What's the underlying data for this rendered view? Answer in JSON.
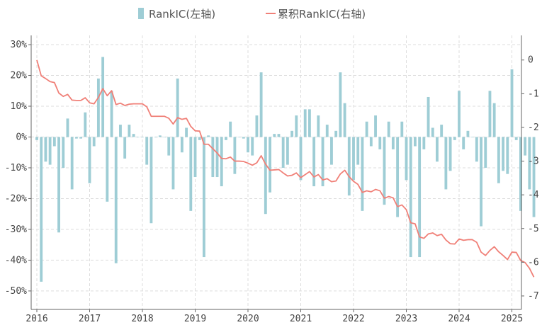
{
  "chart_data": {
    "type": "bar+line",
    "title": "",
    "xlabel": "",
    "ylabel": "",
    "legend": {
      "placement": "top-center",
      "bar_label": "RankIC(左轴)",
      "line_label": "累积RankIC(右轴)"
    },
    "grid": true,
    "colors": {
      "bar": "#9ecdd5",
      "line": "#f08078",
      "axis": "#666666",
      "grid": "#dddddd"
    },
    "x_ticks": [
      "2016",
      "2017",
      "2018",
      "2019",
      "2020",
      "2021",
      "2022",
      "2023",
      "2024",
      "2025"
    ],
    "y_left": {
      "lim": [
        -0.56,
        0.33
      ],
      "ticks": [
        0.3,
        0.2,
        0.1,
        0,
        -0.1,
        -0.2,
        -0.3,
        -0.4,
        -0.5
      ],
      "tick_labels": [
        "30%",
        "20%",
        "10%",
        "0%",
        "-10%",
        "-20%",
        "-30%",
        "-40%",
        "-50%"
      ]
    },
    "y_right": {
      "lim": [
        -7.4,
        0.73
      ],
      "ticks": [
        0,
        -1,
        -2,
        -3,
        -4,
        -5,
        -6,
        -7
      ],
      "tick_labels": [
        "0",
        "-1",
        "-2",
        "-3",
        "-4",
        "-5",
        "-6",
        "-7"
      ]
    },
    "start": "2016-01",
    "monthly_rank_ic": [
      -0.01,
      -0.47,
      -0.08,
      -0.09,
      -0.03,
      -0.31,
      -0.1,
      0.06,
      -0.17,
      -0.005,
      -0.005,
      0.08,
      -0.15,
      -0.03,
      0.19,
      0.26,
      -0.21,
      0.15,
      -0.41,
      0.04,
      -0.07,
      0.04,
      0.01,
      0.0,
      0.0,
      -0.09,
      -0.28,
      0.0,
      0.005,
      0.0,
      -0.06,
      -0.17,
      0.19,
      -0.05,
      0.03,
      -0.24,
      -0.13,
      -0.01,
      -0.39,
      0.005,
      -0.13,
      -0.13,
      -0.16,
      -0.01,
      0.05,
      -0.12,
      0.0,
      -0.005,
      -0.05,
      -0.06,
      0.07,
      0.21,
      -0.25,
      -0.18,
      0.01,
      0.01,
      -0.1,
      -0.09,
      0.02,
      0.07,
      -0.14,
      0.09,
      0.09,
      -0.16,
      0.07,
      -0.16,
      0.04,
      -0.09,
      0.02,
      0.21,
      0.11,
      -0.19,
      -0.14,
      -0.09,
      -0.24,
      0.05,
      -0.03,
      0.07,
      -0.04,
      -0.22,
      0.05,
      -0.04,
      -0.26,
      0.05,
      -0.14,
      -0.39,
      -0.03,
      -0.39,
      -0.04,
      0.13,
      0.03,
      -0.08,
      0.04,
      -0.17,
      -0.11,
      -0.01,
      0.15,
      -0.04,
      0.02,
      0.0,
      -0.08,
      -0.29,
      -0.1,
      0.15,
      0.11,
      -0.15,
      -0.11,
      -0.12,
      0.22,
      -0.01,
      -0.24,
      -0.06,
      -0.17,
      -0.26
    ],
    "cumulative_rank_ic": [
      0.0,
      -0.47,
      -0.55,
      -0.64,
      -0.67,
      -0.98,
      -1.08,
      -1.02,
      -1.19,
      -1.2,
      -1.2,
      -1.12,
      -1.27,
      -1.3,
      -1.11,
      -0.85,
      -1.06,
      -0.91,
      -1.32,
      -1.28,
      -1.35,
      -1.31,
      -1.3,
      -1.3,
      -1.3,
      -1.39,
      -1.67,
      -1.67,
      -1.67,
      -1.67,
      -1.73,
      -1.9,
      -1.71,
      -1.76,
      -1.73,
      -1.97,
      -2.1,
      -2.11,
      -2.5,
      -2.5,
      -2.63,
      -2.76,
      -2.92,
      -2.93,
      -2.88,
      -3.0,
      -3.0,
      -3.01,
      -3.06,
      -3.12,
      -3.05,
      -2.84,
      -3.09,
      -3.27,
      -3.26,
      -3.25,
      -3.35,
      -3.44,
      -3.42,
      -3.35,
      -3.49,
      -3.4,
      -3.31,
      -3.47,
      -3.4,
      -3.56,
      -3.52,
      -3.61,
      -3.59,
      -3.38,
      -3.27,
      -3.46,
      -3.6,
      -3.69,
      -3.93,
      -3.88,
      -3.91,
      -3.84,
      -3.88,
      -4.1,
      -4.05,
      -4.09,
      -4.35,
      -4.3,
      -4.44,
      -4.83,
      -4.86,
      -5.25,
      -5.29,
      -5.16,
      -5.13,
      -5.21,
      -5.17,
      -5.34,
      -5.45,
      -5.46,
      -5.31,
      -5.35,
      -5.33,
      -5.33,
      -5.41,
      -5.7,
      -5.8,
      -5.65,
      -5.54,
      -5.69,
      -5.8,
      -5.92,
      -5.7,
      -5.71,
      -5.95,
      -6.01,
      -6.18,
      -6.44
    ]
  }
}
